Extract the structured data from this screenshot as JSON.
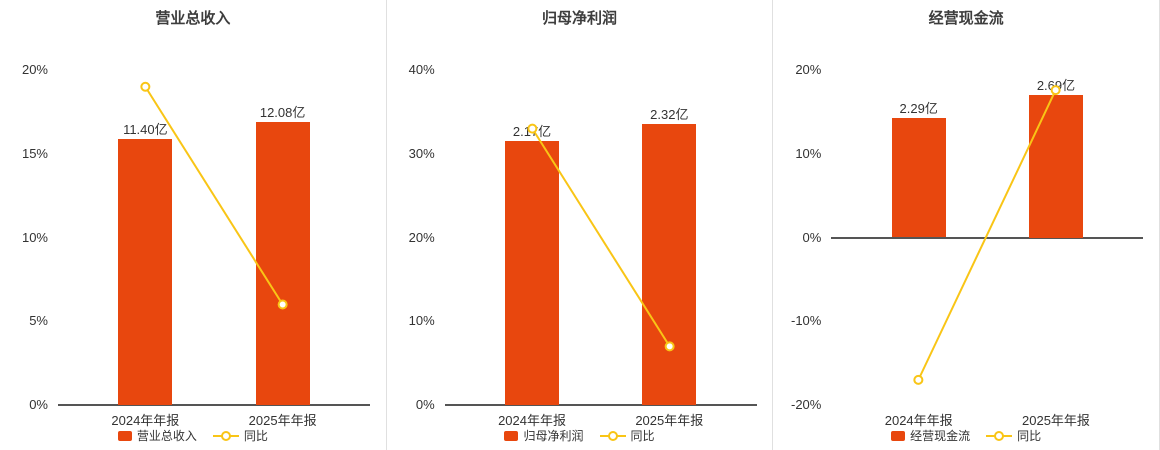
{
  "colors": {
    "bar": "#e8470e",
    "line": "#f9c516",
    "axis": "#555555",
    "text": "#333333",
    "divider": "#e0e0e0"
  },
  "chart_data": [
    {
      "type": "bar",
      "title": "营业总收入",
      "categories": [
        "2024年年报",
        "2025年年报"
      ],
      "series": [
        {
          "name": "营业总收入",
          "type": "bar",
          "unit": "亿",
          "labels": [
            "11.40亿",
            "12.08亿"
          ],
          "values": [
            11.4,
            12.08
          ],
          "bar_heights_on_axis_pct": [
            15.9,
            16.9
          ]
        },
        {
          "name": "同比",
          "type": "line",
          "unit": "%",
          "values_pct": [
            19,
            6
          ]
        }
      ],
      "ylim": [
        0,
        20
      ],
      "yticks_pct": [
        0,
        5,
        10,
        15,
        20
      ],
      "grid": false,
      "legend_position": "bottom"
    },
    {
      "type": "bar",
      "title": "归母净利润",
      "categories": [
        "2024年年报",
        "2025年年报"
      ],
      "series": [
        {
          "name": "归母净利润",
          "type": "bar",
          "unit": "亿",
          "labels": [
            "2.17亿",
            "2.32亿"
          ],
          "values": [
            2.17,
            2.32
          ],
          "bar_heights_on_axis_pct": [
            31.5,
            33.6
          ]
        },
        {
          "name": "同比",
          "type": "line",
          "unit": "%",
          "values_pct": [
            33,
            7
          ]
        }
      ],
      "ylim": [
        0,
        40
      ],
      "yticks_pct": [
        0,
        10,
        20,
        30,
        40
      ],
      "grid": false,
      "legend_position": "bottom"
    },
    {
      "type": "bar",
      "title": "经营现金流",
      "categories": [
        "2024年年报",
        "2025年年报"
      ],
      "series": [
        {
          "name": "经营现金流",
          "type": "bar",
          "unit": "亿",
          "labels": [
            "2.29亿",
            "2.69亿"
          ],
          "values": [
            2.29,
            2.69
          ],
          "bar_heights_on_axis_pct": [
            14.3,
            17.0
          ]
        },
        {
          "name": "同比",
          "type": "line",
          "unit": "%",
          "values_pct": [
            -17,
            17.6
          ]
        }
      ],
      "ylim": [
        -20,
        20
      ],
      "yticks_pct": [
        -20,
        -10,
        0,
        10,
        20
      ],
      "grid": false,
      "legend_position": "bottom"
    }
  ]
}
